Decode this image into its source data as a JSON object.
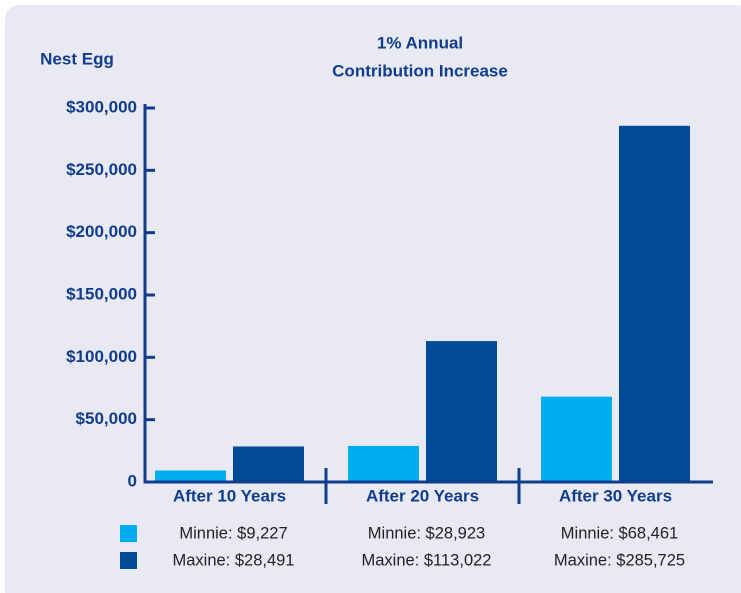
{
  "chart_data": {
    "type": "bar",
    "title": [
      "1% Annual",
      "Contribution Increase"
    ],
    "ylabel": "Nest Egg",
    "categories": [
      "After 10 Years",
      "After 20 Years",
      "After 30 Years"
    ],
    "series": [
      {
        "color": "#00aeef",
        "values": [
          9227,
          28923,
          68461
        ],
        "value_labels": [
          "Minnie: $9,227",
          "Minnie: $28,923",
          "Minnie: $68,461"
        ]
      },
      {
        "color": "#004a97",
        "values": [
          28491,
          113022,
          285725
        ],
        "value_labels": [
          "Maxine: $28,491",
          "Maxine: $113,022",
          "Maxine: $285,725"
        ]
      }
    ],
    "ylim": [
      0,
      300000
    ],
    "yticks": [
      0,
      {
        "value": 50000,
        "label": "$50,000"
      },
      {
        "value": 100000,
        "label": "$100,000"
      },
      {
        "value": 150000,
        "label": "$150,000"
      },
      {
        "value": 200000,
        "label": "$200,000"
      },
      {
        "value": 250000,
        "label": "$250,000"
      },
      {
        "value": 300000,
        "label": "$300,000"
      }
    ]
  }
}
